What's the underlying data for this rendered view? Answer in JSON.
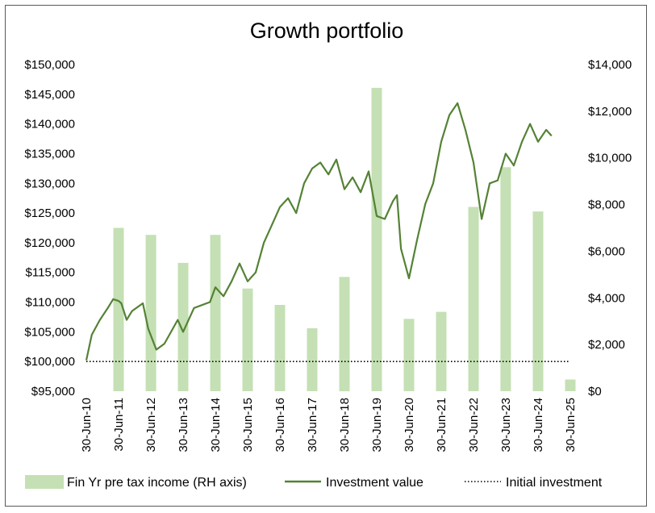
{
  "chart_data": {
    "type": "bar+line",
    "title": "Growth portfolio",
    "left_axis": {
      "min": 95000,
      "max": 150000,
      "step": 5000,
      "tick_labels": [
        "$95,000",
        "$100,000",
        "$105,000",
        "$110,000",
        "$115,000",
        "$120,000",
        "$125,000",
        "$130,000",
        "$135,000",
        "$140,000",
        "$145,000",
        "$150,000"
      ]
    },
    "right_axis": {
      "min": 0,
      "max": 14000,
      "step": 2000,
      "tick_labels": [
        "$0",
        "$2,000",
        "$4,000",
        "$6,000",
        "$8,000",
        "$10,000",
        "$12,000",
        "$14,000"
      ]
    },
    "x_tick_labels": [
      "30-Jun-10",
      "30-Jun-11",
      "30-Jun-12",
      "30-Jun-13",
      "30-Jun-14",
      "30-Jun-15",
      "30-Jun-16",
      "30-Jun-17",
      "30-Jun-18",
      "30-Jun-19",
      "30-Jun-20",
      "30-Jun-21",
      "30-Jun-22",
      "30-Jun-23",
      "30-Jun-24",
      "30-Jun-25"
    ],
    "x_range": [
      "2010-06-30",
      "2025-06-30"
    ],
    "series": [
      {
        "name": "Fin Yr pre tax income (RH axis)",
        "kind": "bar",
        "axis": "right",
        "color": "#c5e0b4",
        "points": [
          {
            "x": "2011-06-30",
            "y": 7000
          },
          {
            "x": "2012-06-30",
            "y": 6700
          },
          {
            "x": "2013-06-30",
            "y": 5500
          },
          {
            "x": "2014-06-30",
            "y": 6700
          },
          {
            "x": "2015-06-30",
            "y": 4400
          },
          {
            "x": "2016-06-30",
            "y": 3700
          },
          {
            "x": "2017-06-30",
            "y": 2700
          },
          {
            "x": "2018-06-30",
            "y": 4900
          },
          {
            "x": "2019-06-30",
            "y": 13000
          },
          {
            "x": "2020-06-30",
            "y": 3100
          },
          {
            "x": "2021-06-30",
            "y": 3400
          },
          {
            "x": "2022-06-30",
            "y": 7900
          },
          {
            "x": "2023-06-30",
            "y": 9600
          },
          {
            "x": "2024-06-30",
            "y": 7700
          },
          {
            "x": "2025-06-30",
            "y": 500
          }
        ]
      },
      {
        "name": "Investment value",
        "kind": "line",
        "axis": "left",
        "color": "#548235",
        "points": [
          {
            "x": "2010-06-30",
            "y": 100200
          },
          {
            "x": "2010-08-31",
            "y": 104500
          },
          {
            "x": "2010-11-30",
            "y": 107000
          },
          {
            "x": "2011-02-28",
            "y": 109000
          },
          {
            "x": "2011-04-30",
            "y": 110500
          },
          {
            "x": "2011-06-30",
            "y": 110200
          },
          {
            "x": "2011-07-31",
            "y": 109800
          },
          {
            "x": "2011-09-30",
            "y": 107000
          },
          {
            "x": "2011-11-30",
            "y": 108500
          },
          {
            "x": "2012-03-31",
            "y": 109800
          },
          {
            "x": "2012-05-31",
            "y": 105500
          },
          {
            "x": "2012-08-31",
            "y": 102000
          },
          {
            "x": "2012-11-30",
            "y": 103000
          },
          {
            "x": "2013-04-30",
            "y": 107000
          },
          {
            "x": "2013-06-30",
            "y": 105000
          },
          {
            "x": "2013-10-31",
            "y": 109000
          },
          {
            "x": "2014-04-30",
            "y": 110000
          },
          {
            "x": "2014-06-30",
            "y": 112500
          },
          {
            "x": "2014-09-30",
            "y": 111000
          },
          {
            "x": "2014-12-31",
            "y": 113500
          },
          {
            "x": "2015-03-31",
            "y": 116500
          },
          {
            "x": "2015-06-30",
            "y": 113500
          },
          {
            "x": "2015-09-30",
            "y": 115000
          },
          {
            "x": "2015-12-31",
            "y": 120000
          },
          {
            "x": "2016-03-31",
            "y": 123000
          },
          {
            "x": "2016-06-30",
            "y": 126000
          },
          {
            "x": "2016-09-30",
            "y": 127500
          },
          {
            "x": "2016-12-31",
            "y": 125000
          },
          {
            "x": "2017-03-31",
            "y": 130000
          },
          {
            "x": "2017-06-30",
            "y": 132500
          },
          {
            "x": "2017-09-30",
            "y": 133500
          },
          {
            "x": "2017-12-31",
            "y": 131500
          },
          {
            "x": "2018-03-31",
            "y": 134000
          },
          {
            "x": "2018-06-30",
            "y": 129000
          },
          {
            "x": "2018-09-30",
            "y": 131000
          },
          {
            "x": "2018-12-31",
            "y": 128500
          },
          {
            "x": "2019-03-31",
            "y": 132000
          },
          {
            "x": "2019-06-30",
            "y": 124500
          },
          {
            "x": "2019-09-30",
            "y": 124000
          },
          {
            "x": "2019-12-31",
            "y": 127000
          },
          {
            "x": "2020-02-15",
            "y": 128000
          },
          {
            "x": "2020-03-31",
            "y": 119000
          },
          {
            "x": "2020-06-30",
            "y": 114000
          },
          {
            "x": "2020-09-30",
            "y": 120500
          },
          {
            "x": "2020-12-31",
            "y": 126500
          },
          {
            "x": "2021-03-31",
            "y": 130000
          },
          {
            "x": "2021-06-30",
            "y": 137000
          },
          {
            "x": "2021-09-30",
            "y": 141500
          },
          {
            "x": "2021-12-31",
            "y": 143500
          },
          {
            "x": "2022-03-31",
            "y": 139000
          },
          {
            "x": "2022-06-30",
            "y": 133500
          },
          {
            "x": "2022-09-30",
            "y": 124000
          },
          {
            "x": "2022-12-31",
            "y": 130000
          },
          {
            "x": "2023-03-31",
            "y": 130500
          },
          {
            "x": "2023-06-30",
            "y": 135000
          },
          {
            "x": "2023-09-30",
            "y": 133000
          },
          {
            "x": "2023-12-31",
            "y": 137000
          },
          {
            "x": "2024-03-31",
            "y": 140000
          },
          {
            "x": "2024-06-30",
            "y": 137000
          },
          {
            "x": "2024-09-30",
            "y": 139000
          },
          {
            "x": "2024-11-30",
            "y": 138000
          }
        ]
      },
      {
        "name": "Initial investment",
        "kind": "dotted-line",
        "axis": "left",
        "color": "#000000",
        "points": [
          {
            "x": "2010-06-30",
            "y": 100000
          },
          {
            "x": "2025-06-30",
            "y": 100000
          }
        ]
      }
    ],
    "legend": {
      "position": "bottom",
      "items": [
        "Fin Yr pre tax income (RH axis)",
        "Investment value",
        "Initial investment"
      ]
    },
    "grid": false
  }
}
